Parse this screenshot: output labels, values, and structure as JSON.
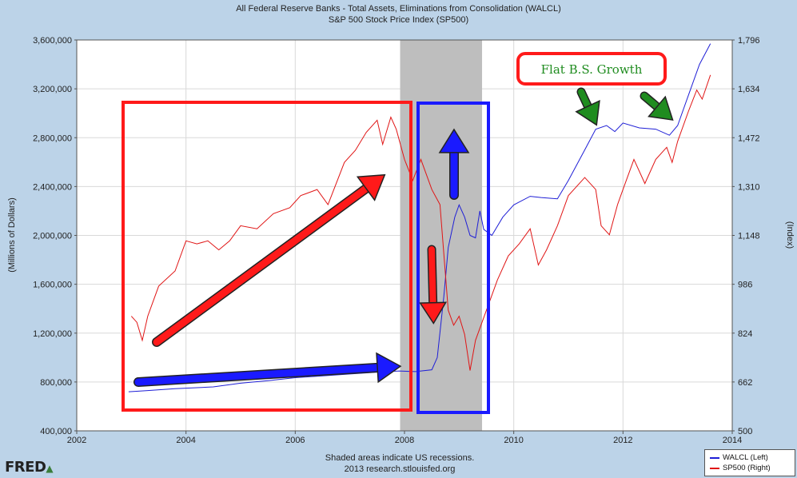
{
  "chart_data": {
    "type": "line",
    "title": "All Federal Reserve Banks - Total Assets, Eliminations from Consolidation (WALCL)",
    "subtitle": "S&P 500 Stock Price Index (SP500)",
    "x_ticks": [
      "2002",
      "2004",
      "2006",
      "2008",
      "2010",
      "2012",
      "2014"
    ],
    "xlim": [
      2002,
      2014
    ],
    "left_axis": {
      "label": "(Millions of Dollars)",
      "ylim": [
        400000,
        3600000
      ],
      "ticks": [
        "400,000",
        "800,000",
        "1,200,000",
        "1,600,000",
        "2,000,000",
        "2,400,000",
        "2,800,000",
        "3,200,000",
        "3,600,000"
      ]
    },
    "right_axis": {
      "label": "(Index)",
      "ylim": [
        500,
        1796
      ],
      "ticks": [
        "500",
        "662",
        "824",
        "986",
        "1,148",
        "1,310",
        "1,472",
        "1,634",
        "1,796"
      ]
    },
    "recession": {
      "start": 2007.92,
      "end": 2009.42
    },
    "series": [
      {
        "name": "WALCL (Left)",
        "axis": "left",
        "color": "#1f1fd6",
        "points": [
          [
            2002.95,
            720000
          ],
          [
            2003.3,
            730000
          ],
          [
            2003.8,
            745000
          ],
          [
            2004.5,
            760000
          ],
          [
            2005.0,
            790000
          ],
          [
            2005.5,
            810000
          ],
          [
            2006.0,
            835000
          ],
          [
            2006.5,
            850000
          ],
          [
            2007.0,
            865000
          ],
          [
            2007.5,
            880000
          ],
          [
            2007.9,
            890000
          ],
          [
            2008.2,
            885000
          ],
          [
            2008.5,
            900000
          ],
          [
            2008.6,
            1000000
          ],
          [
            2008.72,
            1500000
          ],
          [
            2008.8,
            1900000
          ],
          [
            2008.92,
            2150000
          ],
          [
            2009.0,
            2250000
          ],
          [
            2009.1,
            2150000
          ],
          [
            2009.2,
            2000000
          ],
          [
            2009.3,
            1980000
          ],
          [
            2009.38,
            2200000
          ],
          [
            2009.45,
            2050000
          ],
          [
            2009.6,
            2000000
          ],
          [
            2009.8,
            2150000
          ],
          [
            2010.0,
            2250000
          ],
          [
            2010.3,
            2320000
          ],
          [
            2010.5,
            2310000
          ],
          [
            2010.8,
            2300000
          ],
          [
            2011.0,
            2450000
          ],
          [
            2011.3,
            2700000
          ],
          [
            2011.5,
            2870000
          ],
          [
            2011.7,
            2900000
          ],
          [
            2011.85,
            2850000
          ],
          [
            2012.0,
            2920000
          ],
          [
            2012.3,
            2880000
          ],
          [
            2012.6,
            2870000
          ],
          [
            2012.85,
            2820000
          ],
          [
            2013.0,
            2900000
          ],
          [
            2013.2,
            3150000
          ],
          [
            2013.4,
            3400000
          ],
          [
            2013.6,
            3570000
          ]
        ]
      },
      {
        "name": "SP500 (Right)",
        "axis": "right",
        "color": "#e01515",
        "points": [
          [
            2003.0,
            880
          ],
          [
            2003.1,
            860
          ],
          [
            2003.2,
            800
          ],
          [
            2003.3,
            880
          ],
          [
            2003.5,
            980
          ],
          [
            2003.8,
            1030
          ],
          [
            2004.0,
            1130
          ],
          [
            2004.2,
            1120
          ],
          [
            2004.4,
            1130
          ],
          [
            2004.6,
            1100
          ],
          [
            2004.8,
            1130
          ],
          [
            2005.0,
            1180
          ],
          [
            2005.3,
            1170
          ],
          [
            2005.6,
            1220
          ],
          [
            2005.9,
            1240
          ],
          [
            2006.1,
            1280
          ],
          [
            2006.4,
            1300
          ],
          [
            2006.6,
            1250
          ],
          [
            2006.9,
            1390
          ],
          [
            2007.1,
            1430
          ],
          [
            2007.3,
            1490
          ],
          [
            2007.5,
            1530
          ],
          [
            2007.6,
            1450
          ],
          [
            2007.75,
            1540
          ],
          [
            2007.85,
            1500
          ],
          [
            2008.0,
            1400
          ],
          [
            2008.15,
            1330
          ],
          [
            2008.3,
            1400
          ],
          [
            2008.5,
            1300
          ],
          [
            2008.65,
            1250
          ],
          [
            2008.8,
            900
          ],
          [
            2008.9,
            850
          ],
          [
            2009.0,
            880
          ],
          [
            2009.1,
            820
          ],
          [
            2009.2,
            700
          ],
          [
            2009.3,
            800
          ],
          [
            2009.5,
            900
          ],
          [
            2009.7,
            1000
          ],
          [
            2009.9,
            1080
          ],
          [
            2010.1,
            1120
          ],
          [
            2010.3,
            1170
          ],
          [
            2010.45,
            1050
          ],
          [
            2010.6,
            1100
          ],
          [
            2010.8,
            1180
          ],
          [
            2011.0,
            1280
          ],
          [
            2011.3,
            1340
          ],
          [
            2011.5,
            1300
          ],
          [
            2011.6,
            1180
          ],
          [
            2011.75,
            1150
          ],
          [
            2011.9,
            1250
          ],
          [
            2012.0,
            1300
          ],
          [
            2012.2,
            1400
          ],
          [
            2012.4,
            1320
          ],
          [
            2012.6,
            1400
          ],
          [
            2012.8,
            1440
          ],
          [
            2012.9,
            1390
          ],
          [
            2013.0,
            1460
          ],
          [
            2013.2,
            1560
          ],
          [
            2013.35,
            1630
          ],
          [
            2013.45,
            1600
          ],
          [
            2013.6,
            1680
          ]
        ]
      }
    ],
    "annotations": {
      "callout": "Flat B.S. Growth"
    }
  },
  "legend": {
    "walcl": "WALCL (Left)",
    "sp500": "SP500 (Right)"
  },
  "footer": {
    "line1": "Shaded areas indicate US recessions.",
    "line2": "2013 research.stlouisfed.org"
  },
  "logo": {
    "text": "FRED"
  },
  "colors": {
    "walcl": "#1f1fd6",
    "sp500": "#e01515",
    "recession": "#bebebe",
    "annotation_red": "#ff1a1a",
    "annotation_blue": "#1a1aff",
    "annotation_green": "#1f8c1f"
  }
}
